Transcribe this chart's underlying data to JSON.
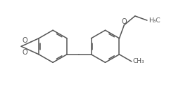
{
  "bg_color": "#ffffff",
  "line_color": "#555555",
  "text_color": "#555555",
  "line_width": 1.1,
  "font_size": 6.5,
  "figsize": [
    2.51,
    1.23
  ],
  "dpi": 100,
  "xlim": [
    0.0,
    5.2
  ],
  "ylim": [
    0.2,
    2.6
  ]
}
